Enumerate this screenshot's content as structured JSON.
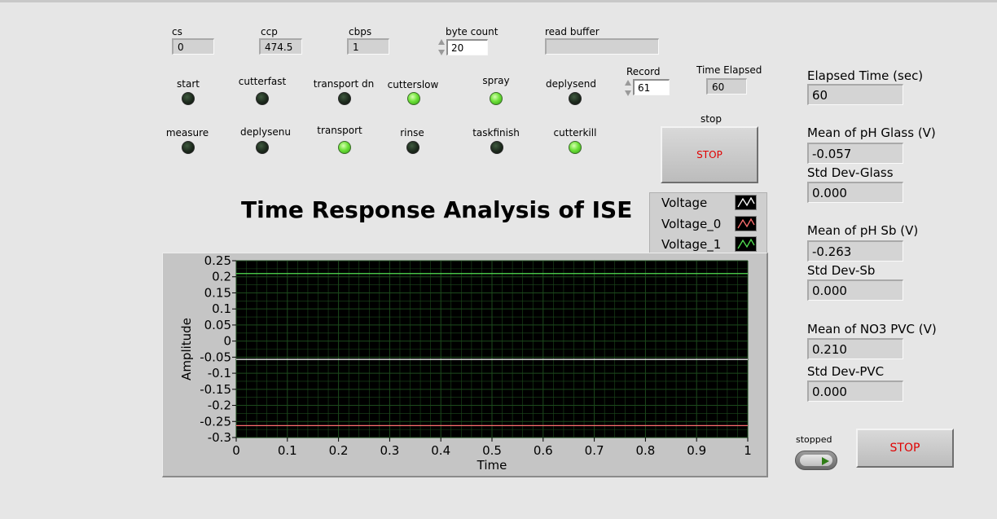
{
  "indicators": {
    "cs": {
      "label": "cs",
      "value": "0"
    },
    "ccp": {
      "label": "ccp",
      "value": "474.5"
    },
    "cbps": {
      "label": "cbps",
      "value": "1"
    },
    "byte_count": {
      "label": "byte count",
      "value": "20"
    },
    "read_buffer": {
      "label": "read buffer",
      "value": ""
    },
    "record": {
      "label": "Record",
      "value": "61"
    },
    "time_elapsed": {
      "label": "Time Elapsed",
      "value": "60"
    }
  },
  "leds_row1": [
    {
      "label": "start",
      "on": false
    },
    {
      "label": "cutterfast",
      "on": false
    },
    {
      "label": "transport dn",
      "on": false
    },
    {
      "label": "cutterslow",
      "on": true
    },
    {
      "label": "spray",
      "on": true
    },
    {
      "label": "deplysend",
      "on": false
    }
  ],
  "leds_row2": [
    {
      "label": "measure",
      "on": false
    },
    {
      "label": "deplysenu",
      "on": false
    },
    {
      "label": "transport",
      "on": true
    },
    {
      "label": "rinse",
      "on": false
    },
    {
      "label": "taskfinish",
      "on": false
    },
    {
      "label": "cutterkill",
      "on": true
    }
  ],
  "stop1": {
    "label": "stop",
    "button": "STOP"
  },
  "stop2": {
    "label": "stopped",
    "button": "STOP"
  },
  "right_panel": {
    "elapsed_label": "Elapsed Time (sec)",
    "elapsed_value": "60",
    "mean_glass_label": "Mean of pH Glass (V)",
    "mean_glass_value": "-0.057",
    "std_glass_label": "Std Dev-Glass",
    "std_glass_value": "0.000",
    "mean_sb_label": "Mean of pH Sb (V)",
    "mean_sb_value": "-0.263",
    "std_sb_label": "Std Dev-Sb",
    "std_sb_value": "0.000",
    "mean_no3_label": "Mean of NO3 PVC (V)",
    "mean_no3_value": "0.210",
    "std_pvc_label": "Std Dev-PVC",
    "std_pvc_value": "0.000"
  },
  "chart_data": {
    "type": "line",
    "title": "Time Response Analysis of ISE",
    "xlabel": "Time",
    "ylabel": "Amplitude",
    "xlim": [
      0,
      1
    ],
    "ylim": [
      -0.3,
      0.25
    ],
    "x_ticks": [
      "0",
      "0.1",
      "0.2",
      "0.3",
      "0.4",
      "0.5",
      "0.6",
      "0.7",
      "0.8",
      "0.9",
      "1"
    ],
    "y_ticks": [
      "0.25",
      "0.2",
      "0.15",
      "0.1",
      "0.05",
      "0",
      "-0.05",
      "-0.1",
      "-0.15",
      "-0.2",
      "-0.25",
      "-0.3"
    ],
    "grid": true,
    "legend_placement": "top-right",
    "series": [
      {
        "name": "Voltage",
        "color": "#ffffff",
        "x": [
          0,
          1
        ],
        "values": [
          -0.057,
          -0.057
        ]
      },
      {
        "name": "Voltage_0",
        "color": "#ff6f6f",
        "x": [
          0,
          1
        ],
        "values": [
          -0.263,
          -0.263
        ]
      },
      {
        "name": "Voltage_1",
        "color": "#52e052",
        "x": [
          0,
          1
        ],
        "values": [
          0.21,
          0.21
        ]
      }
    ]
  }
}
